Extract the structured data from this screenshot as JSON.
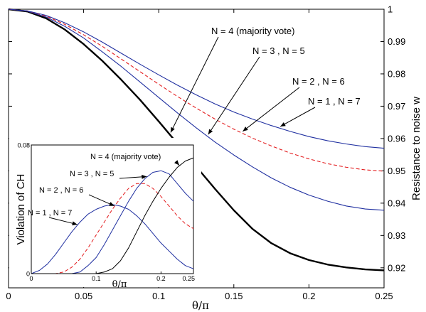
{
  "chart_data": [
    {
      "type": "line",
      "xlabel": "θ/π",
      "ylabel": "Resistance to noise w",
      "xlim": [
        0,
        0.25
      ],
      "ylim": [
        0.9138,
        1.0
      ],
      "y_axis_side": "right",
      "x_ticks": [
        0,
        0.05,
        0.1,
        0.15,
        0.2,
        0.25
      ],
      "x_tick_labels": [
        "0",
        "0.05",
        "0.1",
        "0.15",
        "0.2",
        "0.25"
      ],
      "y_ticks": [
        0.92,
        0.93,
        0.94,
        0.95,
        0.96,
        0.97,
        0.98,
        0.99,
        1
      ],
      "y_tick_labels": [
        "0.92",
        "0.93",
        "0.94",
        "0.95",
        "0.96",
        "0.97",
        "0.98",
        "0.99",
        "1"
      ],
      "series": [
        {
          "name": "N = 4 (majority vote)",
          "color": "#000000",
          "style": "solid-thick",
          "x": [
            0,
            0.0125,
            0.025,
            0.0375,
            0.05,
            0.0625,
            0.075,
            0.0875,
            0.1,
            0.1125,
            0.125,
            0.1375,
            0.15,
            0.1625,
            0.175,
            0.1875,
            0.2,
            0.2125,
            0.225,
            0.2375,
            0.25
          ],
          "values": [
            1.0,
            0.9993,
            0.9972,
            0.9937,
            0.9892,
            0.984,
            0.9782,
            0.972,
            0.9653,
            0.9584,
            0.9513,
            0.9444,
            0.9378,
            0.932,
            0.9276,
            0.9245,
            0.9224,
            0.921,
            0.9201,
            0.9195,
            0.9192
          ]
        },
        {
          "name": "N = 3 , N = 5",
          "color": "#1f2fa0",
          "style": "solid",
          "x": [
            0,
            0.0125,
            0.025,
            0.0375,
            0.05,
            0.0625,
            0.075,
            0.0875,
            0.1,
            0.1125,
            0.125,
            0.1375,
            0.15,
            0.1625,
            0.175,
            0.1875,
            0.2,
            0.2125,
            0.225,
            0.2375,
            0.25
          ],
          "values": [
            1.0,
            0.9994,
            0.9976,
            0.9947,
            0.9911,
            0.9868,
            0.9823,
            0.9775,
            0.9727,
            0.9679,
            0.9633,
            0.9589,
            0.9549,
            0.9512,
            0.9478,
            0.9449,
            0.9425,
            0.9406,
            0.9391,
            0.9382,
            0.9378
          ]
        },
        {
          "name": "N = 2 , N = 6",
          "color": "#e31a1c",
          "style": "dashed",
          "x": [
            0,
            0.0125,
            0.025,
            0.0375,
            0.05,
            0.0625,
            0.075,
            0.0875,
            0.1,
            0.1125,
            0.125,
            0.1375,
            0.15,
            0.1625,
            0.175,
            0.1875,
            0.2,
            0.2125,
            0.225,
            0.2375,
            0.25
          ],
          "values": [
            1.0,
            0.9995,
            0.9979,
            0.9953,
            0.9921,
            0.9885,
            0.9846,
            0.9807,
            0.9768,
            0.973,
            0.9694,
            0.966,
            0.9629,
            0.9601,
            0.9577,
            0.9555,
            0.9537,
            0.9522,
            0.9511,
            0.9503,
            0.9499
          ]
        },
        {
          "name": "N = 1 , N = 7",
          "color": "#1f2fa0",
          "style": "solid",
          "x": [
            0,
            0.0125,
            0.025,
            0.0375,
            0.05,
            0.0625,
            0.075,
            0.0875,
            0.1,
            0.1125,
            0.125,
            0.1375,
            0.15,
            0.1625,
            0.175,
            0.1875,
            0.2,
            0.2125,
            0.225,
            0.2375,
            0.25
          ],
          "values": [
            1.0,
            0.9995,
            0.9981,
            0.9958,
            0.993,
            0.9898,
            0.9864,
            0.983,
            0.9797,
            0.9765,
            0.9735,
            0.9707,
            0.9682,
            0.966,
            0.964,
            0.9622,
            0.9606,
            0.9593,
            0.9583,
            0.9575,
            0.957
          ]
        }
      ],
      "annotations": [
        {
          "text": "N = 4 (majority vote)",
          "series": 0,
          "at_x": 0.107
        },
        {
          "text": "N = 3 , N = 5",
          "series": 1,
          "at_x": 0.132
        },
        {
          "text": "N = 2 , N = 6",
          "series": 2,
          "at_x": 0.155
        },
        {
          "text": "N = 1 , N = 7",
          "series": 3,
          "at_x": 0.18
        }
      ]
    },
    {
      "type": "line",
      "xlabel": "θ/π",
      "ylabel": "Violation of CH",
      "xlim": [
        0,
        0.25
      ],
      "ylim": [
        0,
        0.08
      ],
      "x_ticks": [
        0,
        0.1,
        0.2,
        0.25
      ],
      "x_tick_labels": [
        "0",
        "0.1",
        "0.2",
        "0.25"
      ],
      "y_ticks": [
        0,
        0.08
      ],
      "y_tick_labels": [
        "0",
        "0.08"
      ],
      "series": [
        {
          "name": "N = 1 , N = 7",
          "color": "#1f2fa0",
          "style": "solid",
          "x": [
            0,
            0.0125,
            0.025,
            0.0375,
            0.05,
            0.0625,
            0.075,
            0.0875,
            0.1,
            0.1125,
            0.125,
            0.1375,
            0.15,
            0.1625,
            0.175,
            0.1875,
            0.2,
            0.2125,
            0.225,
            0.2375,
            0.25
          ],
          "values": [
            0,
            0.002,
            0.006,
            0.012,
            0.019,
            0.026,
            0.032,
            0.037,
            0.04,
            0.042,
            0.043,
            0.042,
            0.04,
            0.036,
            0.031,
            0.025,
            0.019,
            0.014,
            0.009,
            0.005,
            0.003
          ]
        },
        {
          "name": "N = 2 , N = 6",
          "color": "#e31a1c",
          "style": "dashed",
          "x": [
            0,
            0.0125,
            0.025,
            0.0375,
            0.05,
            0.0625,
            0.075,
            0.0875,
            0.1,
            0.1125,
            0.125,
            0.1375,
            0.15,
            0.1625,
            0.175,
            0.1875,
            0.2,
            0.2125,
            0.225,
            0.2375,
            0.25
          ],
          "values": [
            0,
            0,
            0,
            0,
            0.001,
            0.004,
            0.009,
            0.016,
            0.024,
            0.032,
            0.04,
            0.047,
            0.053,
            0.056,
            0.056,
            0.053,
            0.048,
            0.042,
            0.036,
            0.031,
            0.028
          ]
        },
        {
          "name": "N = 3 , N = 5",
          "color": "#1f2fa0",
          "style": "solid",
          "x": [
            0,
            0.0125,
            0.025,
            0.0375,
            0.05,
            0.0625,
            0.075,
            0.0875,
            0.1,
            0.1125,
            0.125,
            0.1375,
            0.15,
            0.1625,
            0.175,
            0.1875,
            0.2,
            0.2125,
            0.225,
            0.2375,
            0.25
          ],
          "values": [
            0,
            0,
            0,
            0,
            0,
            0,
            0.001,
            0.005,
            0.01,
            0.018,
            0.027,
            0.036,
            0.045,
            0.053,
            0.059,
            0.063,
            0.064,
            0.062,
            0.056,
            0.05,
            0.045
          ]
        },
        {
          "name": "N = 4 (majority vote)",
          "color": "#000000",
          "style": "solid",
          "x": [
            0,
            0.0125,
            0.025,
            0.0375,
            0.05,
            0.0625,
            0.075,
            0.0875,
            0.1,
            0.1125,
            0.125,
            0.1375,
            0.15,
            0.1625,
            0.175,
            0.1875,
            0.2,
            0.2125,
            0.225,
            0.2375,
            0.25
          ],
          "values": [
            0,
            0,
            0,
            0,
            0,
            0,
            0,
            0,
            0,
            0.001,
            0.003,
            0.008,
            0.016,
            0.026,
            0.036,
            0.045,
            0.053,
            0.06,
            0.066,
            0.07,
            0.072
          ]
        }
      ],
      "annotations": [
        {
          "text": "N = 4 (majority vote)",
          "series": 3,
          "at_x": 0.228
        },
        {
          "text": "N = 3 , N = 5",
          "series": 2,
          "at_x": 0.178
        },
        {
          "text": "N = 2 , N = 6",
          "series": 1,
          "at_x": 0.128
        },
        {
          "text": "N = 1 , N = 7",
          "series": 0,
          "at_x": 0.071
        }
      ]
    }
  ]
}
